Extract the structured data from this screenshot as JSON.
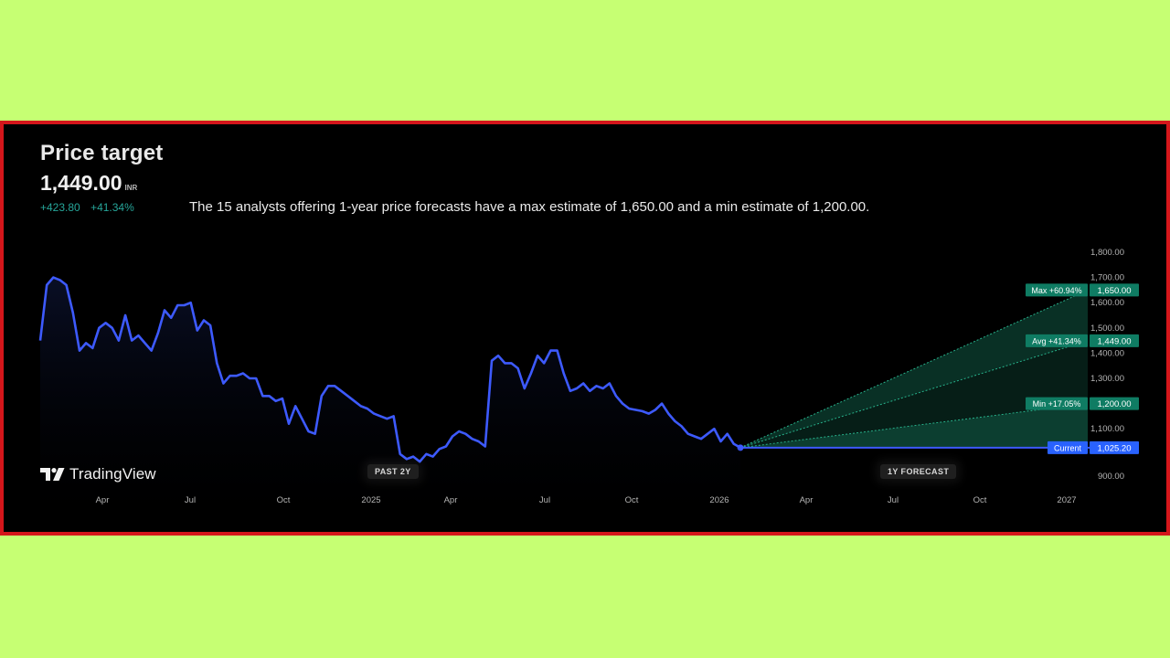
{
  "header": {
    "title": "Price target",
    "price": "1,449.00",
    "currency": "INR",
    "change_abs": "+423.80",
    "change_pct": "+41.34%",
    "summary": "The 15 analysts offering 1-year price forecasts have a max estimate of 1,650.00 and a min estimate of 1,200.00."
  },
  "badges": {
    "past": "PAST 2Y",
    "forecast": "1Y FORECAST"
  },
  "brand": {
    "name": "TradingView"
  },
  "colors": {
    "background": "#000000",
    "frame": "#d4161b",
    "page": "#c6ff73",
    "price_line": "#3d5afe",
    "forecast": "#1b8a6b",
    "label_green": "#0f7c63",
    "current_label": "#2962ff",
    "positive": "#26a69a"
  },
  "chart_data": {
    "type": "line",
    "title": "Price target",
    "x_tick_labels": [
      "Apr",
      "Jul",
      "Oct",
      "2025",
      "Apr",
      "Jul",
      "Oct",
      "2026",
      "Apr",
      "Jul",
      "Oct",
      "2027"
    ],
    "y_tick_labels": [
      "1,800.00",
      "1,700.00",
      "1,600.00",
      "1,500.00",
      "1,400.00",
      "1,300.00",
      "1,200.00",
      "1,100.00",
      "900.00"
    ],
    "ylim": [
      900,
      1800
    ],
    "grid": false,
    "history_x_range": [
      "2024-02",
      "2026-02"
    ],
    "history": [
      1450,
      1670,
      1700,
      1690,
      1670,
      1560,
      1410,
      1440,
      1420,
      1500,
      1520,
      1500,
      1450,
      1550,
      1450,
      1470,
      1440,
      1410,
      1480,
      1570,
      1540,
      1590,
      1590,
      1600,
      1490,
      1530,
      1510,
      1360,
      1280,
      1310,
      1310,
      1320,
      1300,
      1300,
      1230,
      1230,
      1210,
      1220,
      1120,
      1190,
      1140,
      1090,
      1080,
      1230,
      1270,
      1270,
      1250,
      1230,
      1210,
      1190,
      1180,
      1160,
      1150,
      1140,
      1150,
      1000,
      980,
      990,
      970,
      1000,
      990,
      1020,
      1030,
      1070,
      1090,
      1080,
      1060,
      1050,
      1030,
      1370,
      1390,
      1360,
      1360,
      1340,
      1260,
      1320,
      1390,
      1360,
      1410,
      1410,
      1320,
      1250,
      1260,
      1280,
      1250,
      1270,
      1260,
      1280,
      1230,
      1200,
      1180,
      1175,
      1170,
      1160,
      1175,
      1200,
      1160,
      1130,
      1110,
      1080,
      1070,
      1060,
      1080,
      1100,
      1050,
      1080,
      1040,
      1025.2
    ],
    "current": 1025.2,
    "forecast": {
      "max": 1650.0,
      "avg": 1449.0,
      "min": 1200.0
    },
    "labels": [
      {
        "key": "max",
        "tag": "Max +60.94%",
        "value": "1,650.00"
      },
      {
        "key": "avg",
        "tag": "Avg +41.34%",
        "value": "1,449.00"
      },
      {
        "key": "min",
        "tag": "Min +17.05%",
        "value": "1,200.00"
      },
      {
        "key": "current",
        "tag": "Current",
        "value": "1,025.20"
      }
    ]
  }
}
